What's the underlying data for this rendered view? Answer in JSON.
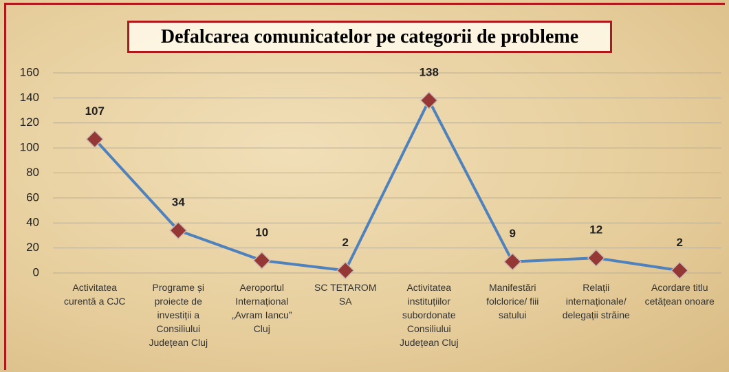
{
  "chart_data": {
    "type": "line",
    "title": "Defalcarea comunicatelor pe categorii de probleme",
    "categories": [
      "Activitatea curentă a CJC",
      "Programe și proiecte de investiții a Consiliului Județean Cluj",
      "Aeroportul Internațional „Avram Iancu” Cluj",
      "SC TETAROM SA",
      "Activitatea instituțiilor subordonate Consiliului Județean Cluj",
      "Manifestări folclorice/ fiii satului",
      "Relații internaționale/ delegații străine",
      "Acordare titlu cetățean onoare"
    ],
    "values": [
      107,
      34,
      10,
      2,
      138,
      9,
      12,
      2
    ],
    "color": "#4f81bd",
    "marker_color": "#953735",
    "ylim": [
      0,
      160
    ],
    "yticks": [
      0,
      20,
      40,
      60,
      80,
      100,
      120,
      140,
      160
    ],
    "grid": true
  }
}
